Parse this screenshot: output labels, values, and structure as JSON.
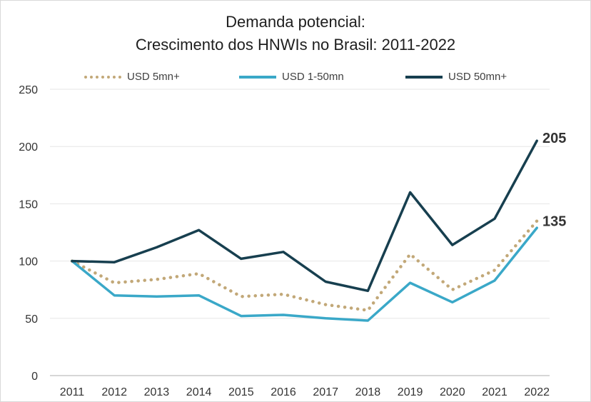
{
  "chart_data": {
    "type": "line",
    "title_line1": "Demanda potencial:",
    "title_line2": "Crescimento dos HNWIs no Brasil: 2011-2022",
    "xlabel": "",
    "ylabel": "",
    "ylim": [
      0,
      250
    ],
    "y_ticks": [
      "0",
      "50",
      "100",
      "150",
      "200",
      "250"
    ],
    "y_tick_values": [
      0,
      50,
      100,
      150,
      200,
      250
    ],
    "categories": [
      "2011",
      "2012",
      "2013",
      "2014",
      "2015",
      "2016",
      "2017",
      "2018",
      "2019",
      "2020",
      "2021",
      "2022"
    ],
    "grid": true,
    "legend_position": "top",
    "series": [
      {
        "name": "USD 5mn+",
        "style": "dotted",
        "color": "#c2a878",
        "values": [
          100,
          81,
          84,
          89,
          69,
          71,
          62,
          57,
          106,
          75,
          92,
          135
        ]
      },
      {
        "name": "USD 1-50mn",
        "style": "solid",
        "color": "#3aa8c8",
        "values": [
          100,
          70,
          69,
          70,
          52,
          53,
          50,
          48,
          81,
          64,
          83,
          129
        ]
      },
      {
        "name": "USD 50mn+",
        "style": "solid",
        "color": "#173f4f",
        "values": [
          100,
          99,
          112,
          127,
          102,
          108,
          82,
          74,
          160,
          114,
          137,
          205
        ]
      }
    ],
    "end_labels": [
      "205",
      "135"
    ]
  }
}
